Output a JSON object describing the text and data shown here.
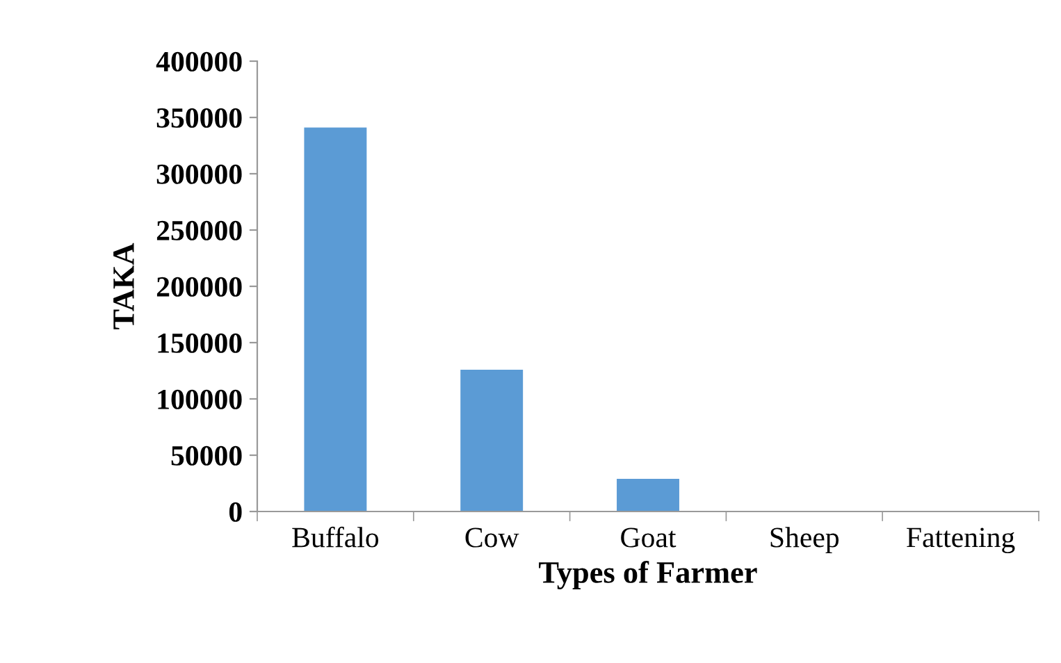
{
  "chart_data": {
    "type": "bar",
    "xlabel": "Types of Farmer",
    "ylabel": "TAKA",
    "categories": [
      "Buffalo",
      "Cow",
      "Goat",
      "Sheep",
      "Fattening"
    ],
    "values": [
      341000,
      126000,
      29000,
      0,
      0
    ],
    "color": "#5b9bd5",
    "ylim": [
      0,
      400000
    ],
    "yticks": [
      0,
      50000,
      100000,
      150000,
      200000,
      250000,
      300000,
      350000,
      400000
    ],
    "grid": false
  }
}
